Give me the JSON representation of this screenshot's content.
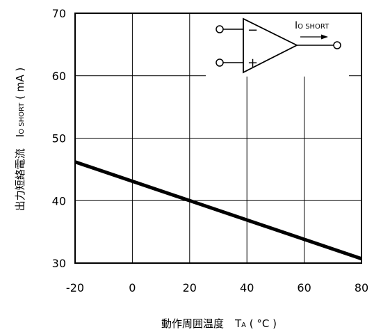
{
  "chart_data": {
    "type": "line",
    "xlabel": "動作周囲温度　TA ( °C )",
    "xlabel_parts": {
      "main": "動作周囲温度",
      "symbol": "T",
      "sub": "A",
      "unit": " ( °C )"
    },
    "ylabel": "出力短絡電流　IO SHORT ( mA )",
    "ylabel_parts": {
      "main": "出力短絡電流",
      "symbol": "I",
      "sub": "O SHORT",
      "unit": " ( mA )"
    },
    "xlim": [
      -20,
      80
    ],
    "ylim": [
      30,
      70
    ],
    "x_ticks": [
      "-20",
      "0",
      "20",
      "40",
      "60",
      "80"
    ],
    "y_ticks": [
      "30",
      "40",
      "50",
      "60",
      "70"
    ],
    "x_tick_values": [
      -20,
      0,
      20,
      40,
      60,
      80
    ],
    "y_tick_values": [
      30,
      40,
      50,
      60,
      70
    ],
    "grid": true,
    "series": [
      {
        "x": [
          -20,
          80
        ],
        "y": [
          46.2,
          30.7
        ],
        "color": "#000000"
      }
    ],
    "inset": {
      "minus": "−",
      "plus": "+",
      "output_symbol": "I",
      "output_sub": "O SHORT"
    }
  }
}
